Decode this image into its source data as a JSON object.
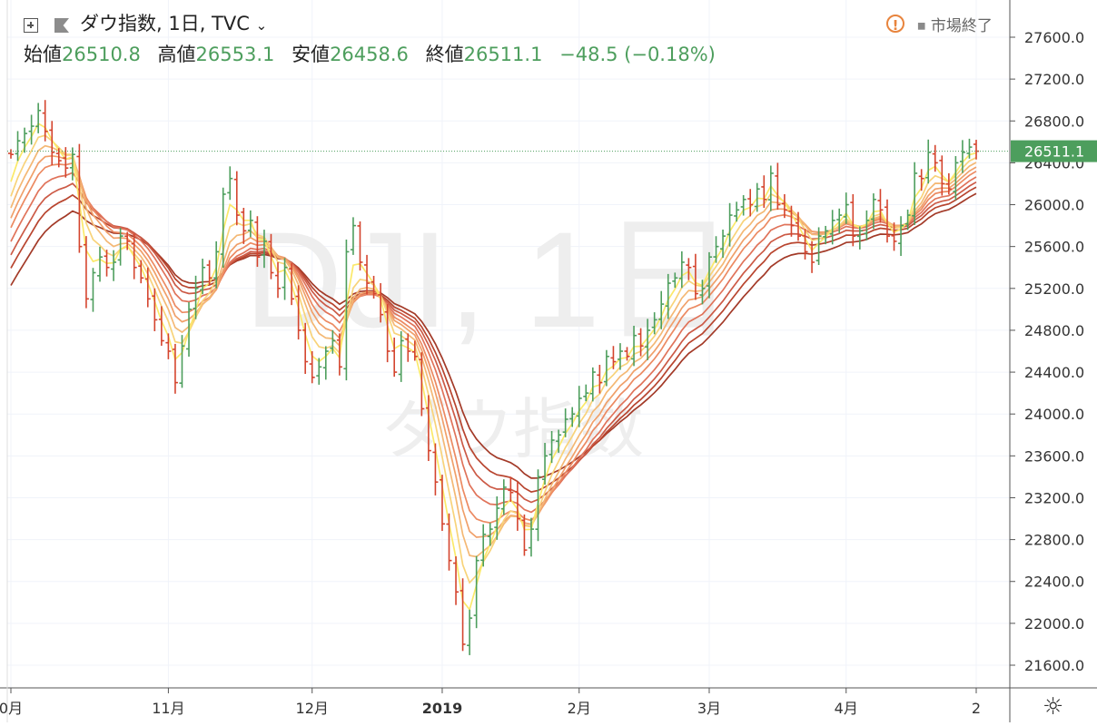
{
  "header": {
    "symbol_title": "ダウ指数, 1日, TVC",
    "dropdown_icon": "chevron-down-icon",
    "expand_icon": "expand-icon",
    "flag_icon": "flag-icon",
    "ohlc": {
      "open_label": "始値",
      "open_value": "26510.8",
      "high_label": "高値",
      "high_value": "26553.1",
      "low_label": "安値",
      "low_value": "26458.6",
      "close_label": "終値",
      "close_value": "26511.1",
      "change": "−48.5 (−0.18%)"
    },
    "market_status": "市場終了",
    "warning_icon": "warning-icon",
    "value_color": "#4d9e5d"
  },
  "watermark": {
    "line1": "DJI, 1日",
    "line2": "ダウ指数"
  },
  "settings_icon": "gear-icon",
  "chart_data": {
    "type": "ohlc",
    "last_price_label": "26511.1",
    "last_price": 26511.1,
    "ylim": [
      21400,
      27800
    ],
    "yticks": [
      21600,
      22000,
      22400,
      22800,
      23200,
      23600,
      24000,
      24400,
      24800,
      25200,
      25600,
      26000,
      26400,
      26800,
      27200,
      27600
    ],
    "ytick_labels": [
      "21600.0",
      "22000.0",
      "22400.0",
      "22800.0",
      "23200.0",
      "23600.0",
      "24000.0",
      "24400.0",
      "24800.0",
      "25200.0",
      "25600.0",
      "26000.0",
      "26400.0",
      "26800.0",
      "27200.0",
      "27600.0"
    ],
    "xticks": [
      {
        "label": "0月",
        "index": 0,
        "bold": false
      },
      {
        "label": "11月",
        "index": 23,
        "bold": false
      },
      {
        "label": "12月",
        "index": 44,
        "bold": false
      },
      {
        "label": "2019",
        "index": 63,
        "bold": true
      },
      {
        "label": "2月",
        "index": 83,
        "bold": false
      },
      {
        "label": "3月",
        "index": 102,
        "bold": false
      },
      {
        "label": "4月",
        "index": 122,
        "bold": false
      },
      {
        "label": "2",
        "index": 141,
        "bold": false
      }
    ],
    "closes": [
      26480,
      26610,
      26680,
      26750,
      26900,
      26700,
      26500,
      26420,
      26350,
      26480,
      25600,
      25100,
      25350,
      25500,
      25400,
      25450,
      25700,
      25650,
      25400,
      25300,
      25100,
      24900,
      24700,
      24600,
      24300,
      24650,
      25000,
      25200,
      25400,
      25300,
      25550,
      26100,
      26250,
      25900,
      25750,
      25850,
      25500,
      25650,
      25350,
      25200,
      25400,
      25100,
      24800,
      24500,
      24350,
      24450,
      24600,
      24700,
      24450,
      25550,
      25800,
      25450,
      25250,
      25150,
      24950,
      24600,
      24400,
      24700,
      24600,
      24550,
      24050,
      23650,
      23350,
      22950,
      22600,
      22300,
      21800,
      22050,
      22600,
      22850,
      22900,
      23100,
      23300,
      23250,
      23000,
      22700,
      22900,
      23400,
      23600,
      23750,
      23800,
      23950,
      24000,
      24150,
      24200,
      24400,
      24300,
      24550,
      24500,
      24600,
      24550,
      24750,
      24650,
      24800,
      24900,
      25050,
      25250,
      25300,
      25450,
      25400,
      25150,
      25200,
      25500,
      25600,
      25700,
      25900,
      25950,
      26050,
      26000,
      26150,
      26050,
      26300,
      26000,
      25950,
      25800,
      25700,
      25550,
      25450,
      25700,
      25750,
      25850,
      25900,
      26000,
      25700,
      25750,
      25850,
      26050,
      25950,
      25700,
      25650,
      25800,
      25900,
      26300,
      26250,
      26500,
      26400,
      26200,
      26150,
      26400,
      26500,
      26550,
      26511
    ],
    "series": [
      {
        "name": "",
        "period": 3,
        "color": "#fbe96a"
      },
      {
        "name": "",
        "period": 5,
        "color": "#f8d37a"
      },
      {
        "name": "",
        "period": 7,
        "color": "#f4b874"
      },
      {
        "name": "",
        "period": 9,
        "color": "#f0a06a"
      },
      {
        "name": "",
        "period": 11,
        "color": "#ec8a62"
      },
      {
        "name": "",
        "period": 14,
        "color": "#e0735a"
      },
      {
        "name": "",
        "period": 17,
        "color": "#cc5a46"
      },
      {
        "name": "",
        "period": 20,
        "color": "#b8452f"
      },
      {
        "name": "",
        "period": 24,
        "color": "#a33a28"
      }
    ],
    "up_color": "#4d9e5d",
    "down_color": "#d4442e",
    "grid": true
  }
}
